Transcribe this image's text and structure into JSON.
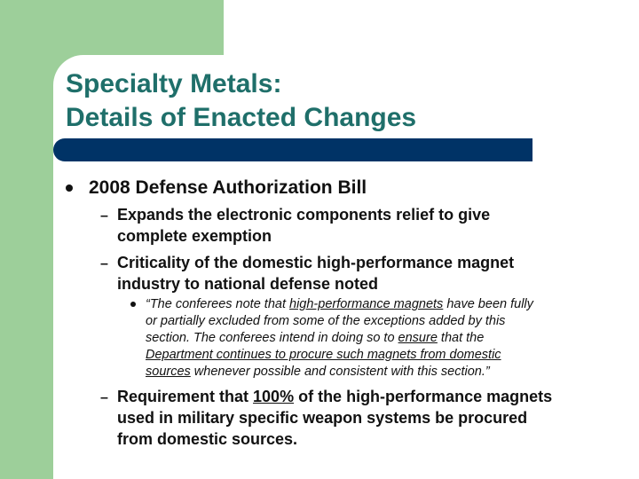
{
  "title": {
    "line1": "Specialty Metals:",
    "line2": "Details of Enacted Changes"
  },
  "level1": {
    "bullet_text": "2008 Defense Authorization Bill"
  },
  "level2": {
    "item1": {
      "line1": "Expands the electronic components relief to give",
      "line2": "complete exemption"
    },
    "item2": {
      "line1": "Criticality of the domestic high-performance magnet",
      "line2": "industry to national defense noted"
    },
    "item3": {
      "line1_pre": "Requirement that ",
      "line1_underlined": "100%",
      "line1_post": " of the high-performance magnets",
      "line2": "used in military specific weapon systems be procured",
      "line3": "from domestic sources."
    }
  },
  "quote": {
    "l1_pre": "“The conferees note that ",
    "l1_u": "high-performance magnets",
    "l1_post": " have been fully",
    "l2": "or partially excluded from some of the exceptions added by this",
    "l3_pre": "section.  The conferees intend in doing so to ",
    "l3_u": "ensure",
    "l3_post": " that the",
    "l4": "Department continues to procure such magnets from domestic",
    "l5_u": "sources",
    "l5_post": " whenever possible and consistent with this section.”"
  },
  "colors": {
    "sidebar_green": "#9dcf9a",
    "title_teal": "#1f6f6a",
    "bar_navy": "#003366"
  }
}
